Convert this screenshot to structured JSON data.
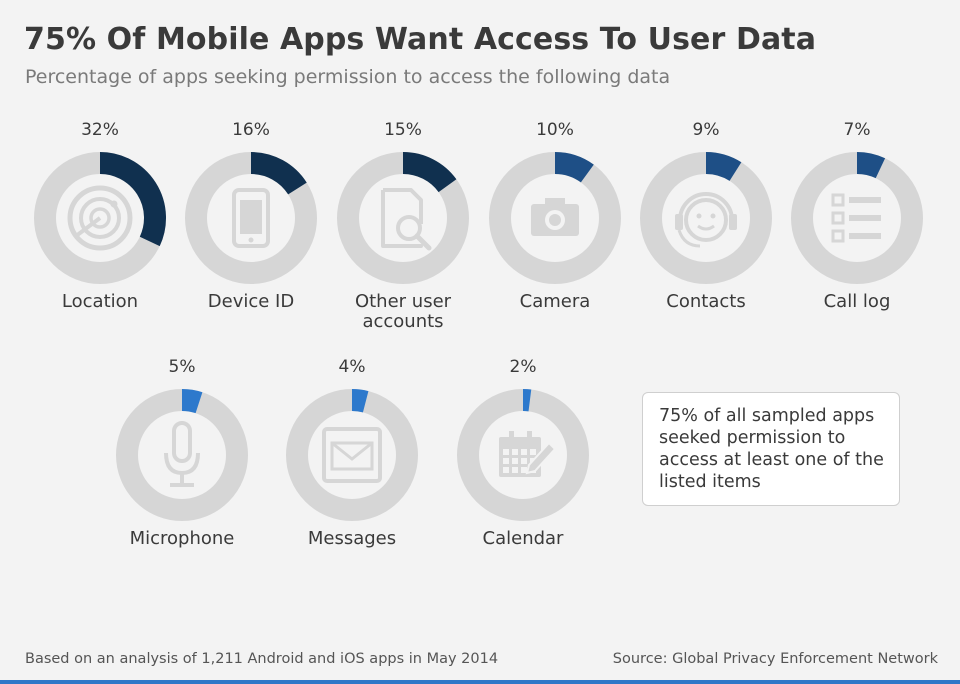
{
  "title": "75% Of Mobile Apps Want Access To User Data",
  "subtitle": "Percentage of apps seeking permission to access the following data",
  "chart_data": {
    "type": "pie",
    "categories": [
      "Location",
      "Device ID",
      "Other user accounts",
      "Camera",
      "Contacts",
      "Call log",
      "Microphone",
      "Messages",
      "Calendar"
    ],
    "values": [
      32,
      16,
      15,
      10,
      9,
      7,
      5,
      4,
      2
    ],
    "value_labels": [
      "32%",
      "16%",
      "15%",
      "10%",
      "9%",
      "7%",
      "5%",
      "4%",
      "2%"
    ],
    "labels": [
      [
        "Location"
      ],
      [
        "Device ID"
      ],
      [
        "Other user",
        "accounts"
      ],
      [
        "Camera"
      ],
      [
        "Contacts"
      ],
      [
        "Call log"
      ],
      [
        "Microphone"
      ],
      [
        "Messages"
      ],
      [
        "Calendar"
      ]
    ],
    "icons": [
      "radar-icon",
      "smartphone-icon",
      "document-search-icon",
      "camera-icon",
      "headset-icon",
      "list-icon",
      "microphone-icon",
      "envelope-icon",
      "calendar-icon"
    ],
    "unit": "%",
    "ylim": [
      0,
      100
    ]
  },
  "colors": {
    "track": "#d6d6d6",
    "inner": "#f3f3f3",
    "icon": "#d6d6d6",
    "dark_blue": "#10304f",
    "mid_blue": "#1e4f86",
    "bright_blue": "#2d79cc",
    "accent_rule": "#2f77c8"
  },
  "note": [
    "75% of all sampled apps",
    "seeked permission to",
    "access at least one of the",
    "listed items"
  ],
  "footer": {
    "left": "Based on an analysis of 1,211 Android and iOS apps in May 2014",
    "right": "Source: Global Privacy Enforcement Network"
  }
}
